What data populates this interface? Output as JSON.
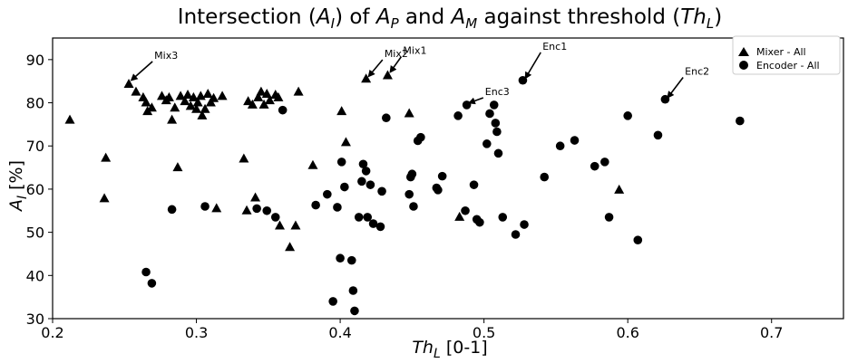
{
  "chart_data": {
    "type": "scatter",
    "title": "Intersection (A_I) of A_P and A_M against threshold (Th_L)",
    "xlabel": "Th_L [0-1]",
    "ylabel": "A_I [%]",
    "xlim": [
      0.2,
      0.75
    ],
    "ylim": [
      30,
      95
    ],
    "xticks": [
      "0.2",
      "0.3",
      "0.4",
      "0.5",
      "0.6",
      "0.7"
    ],
    "yticks": [
      "30",
      "40",
      "50",
      "60",
      "70",
      "80",
      "90"
    ],
    "legend_position": "top-right",
    "grid": false,
    "series": [
      {
        "name": "Mixer - All",
        "marker": "triangle",
        "color": "#000000",
        "points": [
          [
            0.212,
            76
          ],
          [
            0.236,
            57.8
          ],
          [
            0.237,
            67.2
          ],
          [
            0.253,
            84.3
          ],
          [
            0.258,
            82.5
          ],
          [
            0.263,
            81.2
          ],
          [
            0.265,
            80
          ],
          [
            0.266,
            78
          ],
          [
            0.269,
            78.8
          ],
          [
            0.276,
            81.5
          ],
          [
            0.279,
            80.5
          ],
          [
            0.281,
            81.2
          ],
          [
            0.283,
            76
          ],
          [
            0.285,
            78.8
          ],
          [
            0.287,
            65
          ],
          [
            0.289,
            81.5
          ],
          [
            0.292,
            80.3
          ],
          [
            0.294,
            81.8
          ],
          [
            0.296,
            79.2
          ],
          [
            0.298,
            81.2
          ],
          [
            0.3,
            78.5
          ],
          [
            0.301,
            80
          ],
          [
            0.303,
            81.5
          ],
          [
            0.304,
            77
          ],
          [
            0.306,
            78.5
          ],
          [
            0.308,
            82
          ],
          [
            0.31,
            80
          ],
          [
            0.312,
            81
          ],
          [
            0.314,
            55.5
          ],
          [
            0.318,
            81.5
          ],
          [
            0.333,
            67
          ],
          [
            0.335,
            55
          ],
          [
            0.336,
            80.3
          ],
          [
            0.339,
            79.5
          ],
          [
            0.341,
            58
          ],
          [
            0.343,
            81.2
          ],
          [
            0.345,
            82.5
          ],
          [
            0.347,
            79.5
          ],
          [
            0.349,
            82
          ],
          [
            0.351,
            80.5
          ],
          [
            0.355,
            81.8
          ],
          [
            0.357,
            81.2
          ],
          [
            0.358,
            51.5
          ],
          [
            0.365,
            46.5
          ],
          [
            0.369,
            51.5
          ],
          [
            0.371,
            82.5
          ],
          [
            0.381,
            65.5
          ],
          [
            0.401,
            78
          ],
          [
            0.404,
            70.8
          ],
          [
            0.418,
            85.5
          ],
          [
            0.433,
            86.3
          ],
          [
            0.448,
            77.5
          ],
          [
            0.483,
            53.5
          ],
          [
            0.594,
            59.8
          ]
        ]
      },
      {
        "name": "Encoder - All",
        "marker": "circle",
        "color": "#000000",
        "points": [
          [
            0.265,
            40.8
          ],
          [
            0.269,
            38.2
          ],
          [
            0.283,
            55.3
          ],
          [
            0.306,
            56
          ],
          [
            0.342,
            55.5
          ],
          [
            0.349,
            55
          ],
          [
            0.355,
            53.5
          ],
          [
            0.36,
            78.3
          ],
          [
            0.383,
            56.3
          ],
          [
            0.391,
            58.8
          ],
          [
            0.395,
            34
          ],
          [
            0.398,
            55.8
          ],
          [
            0.4,
            44
          ],
          [
            0.401,
            66.3
          ],
          [
            0.403,
            60.5
          ],
          [
            0.408,
            43.5
          ],
          [
            0.409,
            36.5
          ],
          [
            0.41,
            31.8
          ],
          [
            0.413,
            53.5
          ],
          [
            0.415,
            61.8
          ],
          [
            0.416,
            65.8
          ],
          [
            0.418,
            64.2
          ],
          [
            0.419,
            53.5
          ],
          [
            0.421,
            61
          ],
          [
            0.423,
            52
          ],
          [
            0.428,
            51.3
          ],
          [
            0.429,
            59.5
          ],
          [
            0.432,
            76.5
          ],
          [
            0.448,
            58.8
          ],
          [
            0.449,
            62.8
          ],
          [
            0.45,
            63.5
          ],
          [
            0.451,
            56
          ],
          [
            0.454,
            71.2
          ],
          [
            0.456,
            72
          ],
          [
            0.467,
            60.3
          ],
          [
            0.468,
            59.8
          ],
          [
            0.471,
            63
          ],
          [
            0.482,
            77
          ],
          [
            0.487,
            55
          ],
          [
            0.488,
            79.5
          ],
          [
            0.493,
            61
          ],
          [
            0.495,
            53
          ],
          [
            0.497,
            52.3
          ],
          [
            0.502,
            70.5
          ],
          [
            0.504,
            77.5
          ],
          [
            0.507,
            79.5
          ],
          [
            0.508,
            75.3
          ],
          [
            0.509,
            73.3
          ],
          [
            0.51,
            68.3
          ],
          [
            0.513,
            53.5
          ],
          [
            0.522,
            49.5
          ],
          [
            0.527,
            85.2
          ],
          [
            0.528,
            51.8
          ],
          [
            0.542,
            62.8
          ],
          [
            0.553,
            70
          ],
          [
            0.563,
            71.3
          ],
          [
            0.577,
            65.3
          ],
          [
            0.584,
            66.3
          ],
          [
            0.587,
            53.5
          ],
          [
            0.6,
            77
          ],
          [
            0.607,
            48.2
          ],
          [
            0.621,
            72.5
          ],
          [
            0.626,
            80.8
          ],
          [
            0.678,
            75.8
          ]
        ]
      }
    ],
    "annotations": [
      {
        "text": "Mix3",
        "point": [
          0.255,
          85.3
        ],
        "text_at": [
          0.272,
          90.2
        ]
      },
      {
        "text": "Mix2",
        "point": [
          0.42,
          86.2
        ],
        "text_at": [
          0.432,
          90.6
        ]
      },
      {
        "text": "Mix1",
        "point": [
          0.435,
          87.2
        ],
        "text_at": [
          0.445,
          91.3
        ]
      },
      {
        "text": "Enc1",
        "point": [
          0.529,
          85.8
        ],
        "text_at": [
          0.542,
          92.3
        ]
      },
      {
        "text": "Enc3",
        "point": [
          0.49,
          80
        ],
        "text_at": [
          0.502,
          81.8
        ]
      },
      {
        "text": "Enc2",
        "point": [
          0.628,
          81.3
        ],
        "text_at": [
          0.641,
          86.5
        ]
      }
    ]
  }
}
